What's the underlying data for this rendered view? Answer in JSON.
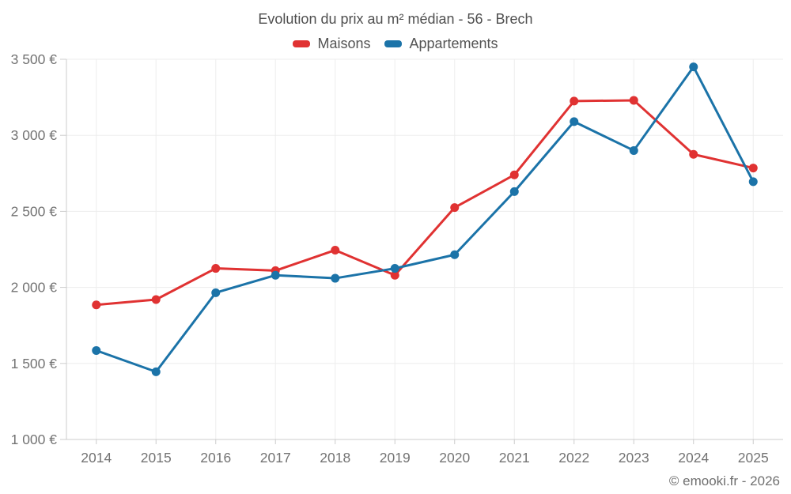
{
  "header": {
    "title": "Evolution du prix au m² médian - 56 - Brech"
  },
  "legend": [
    {
      "label": "Maisons",
      "color": "#e03232"
    },
    {
      "label": "Appartements",
      "color": "#1b73a8"
    }
  ],
  "footer": {
    "credit": "© emooki.fr - 2026"
  },
  "chart_data": {
    "type": "line",
    "title": "Evolution du prix au m² médian - 56 - Brech",
    "categories": [
      "2014",
      "2015",
      "2016",
      "2017",
      "2018",
      "2019",
      "2020",
      "2021",
      "2022",
      "2023",
      "2024",
      "2025"
    ],
    "series": [
      {
        "name": "Maisons",
        "color": "#e03232",
        "values": [
          1885,
          1920,
          2125,
          2110,
          2245,
          2080,
          2525,
          2740,
          3225,
          3230,
          2875,
          2785
        ]
      },
      {
        "name": "Appartements",
        "color": "#1b73a8",
        "values": [
          1585,
          1445,
          1965,
          2080,
          2060,
          2125,
          2215,
          2630,
          3090,
          2900,
          3450,
          2695
        ]
      }
    ],
    "xlabel": "",
    "ylabel": "",
    "ylim": [
      1000,
      3500
    ],
    "ytick_values": [
      1000,
      1500,
      2000,
      2500,
      3000,
      3500
    ],
    "ytick_labels": [
      "1 000 €",
      "1 500 €",
      "2 000 €",
      "2 500 €",
      "3 000 €",
      "3 500 €"
    ],
    "grid": true,
    "legend_position": "top",
    "colors": {
      "gridline": "#ededed",
      "axis": "#cccccc",
      "tick_text": "#737373"
    }
  }
}
